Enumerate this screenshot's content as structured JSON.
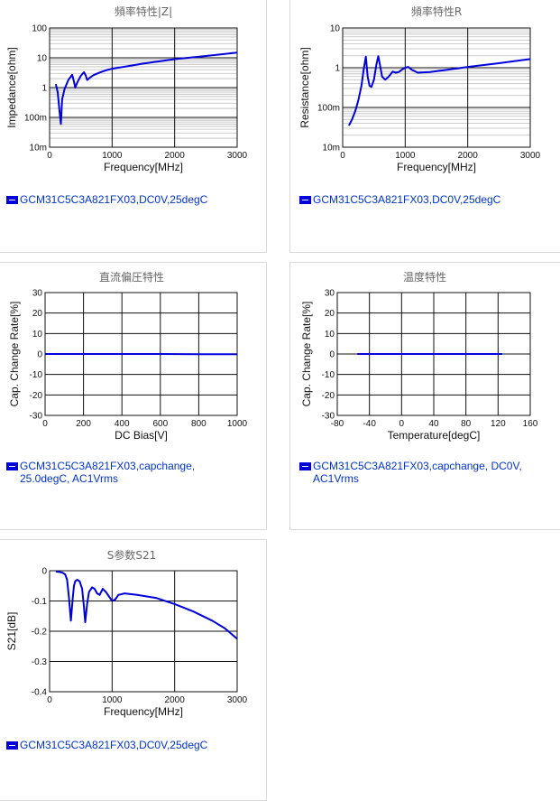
{
  "colors": {
    "series": "#0000dd",
    "legend_text": "#0033cc",
    "grid_major": "#111111",
    "grid_minor": "#bbbbbb",
    "panel_border": "#d9d9d9"
  },
  "legend_icon": "minus-square-icon",
  "chart_data": [
    {
      "id": "impedance",
      "type": "line",
      "title": "頻率特性|Z|",
      "xlabel": "Frequency[MHz]",
      "ylabel": "Impedance[ohm]",
      "xlim": [
        0,
        3000
      ],
      "x_scale": "linear",
      "x_ticks": [
        0,
        1000,
        2000,
        3000
      ],
      "x_tick_labels": [
        "0",
        "1000",
        "2000",
        "3000"
      ],
      "ylim": [
        0.01,
        100
      ],
      "y_scale": "log",
      "y_ticks": [
        0.01,
        0.1,
        1,
        10,
        100
      ],
      "y_tick_labels": [
        "10m",
        "100m",
        "1",
        "10",
        "100"
      ],
      "grid": true,
      "legend": "GCM31C5C3A821FX03,DC0V,25degC",
      "series": [
        {
          "x": [
            100,
            130,
            160,
            180,
            200,
            240,
            300,
            360,
            390,
            410,
            450,
            500,
            550,
            580,
            600,
            650,
            700,
            800,
            900,
            1000,
            1200,
            1500,
            2000,
            2500,
            3000
          ],
          "y": [
            1.3,
            0.7,
            0.15,
            0.06,
            0.4,
            0.9,
            1.8,
            2.7,
            1.6,
            1.0,
            1.6,
            2.5,
            3.3,
            2.5,
            1.8,
            2.2,
            2.6,
            3.2,
            3.8,
            4.3,
            5.0,
            6.4,
            9.0,
            11.5,
            15
          ]
        }
      ]
    },
    {
      "id": "resistance",
      "type": "line",
      "title": "頻率特性R",
      "xlabel": "Frequency[MHz]",
      "ylabel": "Resistance[ohm]",
      "xlim": [
        0,
        3000
      ],
      "x_scale": "linear",
      "x_ticks": [
        0,
        1000,
        2000,
        3000
      ],
      "x_tick_labels": [
        "0",
        "1000",
        "2000",
        "3000"
      ],
      "ylim": [
        0.01,
        10
      ],
      "y_scale": "log",
      "y_ticks": [
        0.01,
        0.1,
        1,
        10
      ],
      "y_tick_labels": [
        "10m",
        "100m",
        "1",
        "10"
      ],
      "grid": true,
      "legend": "GCM31C5C3A821FX03,DC0V,25degC",
      "series": [
        {
          "x": [
            100,
            150,
            200,
            250,
            300,
            340,
            370,
            400,
            430,
            460,
            500,
            540,
            570,
            600,
            630,
            680,
            730,
            800,
            850,
            900,
            950,
            1000,
            1050,
            1100,
            1200,
            1400,
            1700,
            2000,
            2500,
            3000
          ],
          "y": [
            0.035,
            0.05,
            0.08,
            0.15,
            0.35,
            1.0,
            1.9,
            0.6,
            0.35,
            0.33,
            0.5,
            1.2,
            1.95,
            1.1,
            0.6,
            0.5,
            0.58,
            0.8,
            0.75,
            0.78,
            0.9,
            1.0,
            1.05,
            0.9,
            0.75,
            0.78,
            0.9,
            1.05,
            1.3,
            1.65
          ]
        }
      ]
    },
    {
      "id": "dc_bias",
      "type": "line",
      "title": "直流偏圧特性",
      "xlabel": "DC Bias[V]",
      "ylabel": "Cap. Change Rate[%]",
      "xlim": [
        0,
        1000
      ],
      "x_scale": "linear",
      "x_ticks": [
        0,
        200,
        400,
        600,
        800,
        1000
      ],
      "x_tick_labels": [
        "0",
        "200",
        "400",
        "600",
        "800",
        "1000"
      ],
      "ylim": [
        -30,
        30
      ],
      "y_scale": "linear",
      "y_ticks": [
        -30,
        -20,
        -10,
        0,
        10,
        20,
        30
      ],
      "y_tick_labels": [
        "-30",
        "-20",
        "-10",
        "0",
        "10",
        "20",
        "30"
      ],
      "grid": true,
      "legend": "GCM31C5C3A821FX03,capchange, 25.0degC, AC1Vrms",
      "series": [
        {
          "x": [
            0,
            200,
            400,
            600,
            800,
            1000
          ],
          "y": [
            0,
            0,
            0,
            0,
            -0.1,
            -0.1
          ]
        }
      ]
    },
    {
      "id": "temperature",
      "type": "line",
      "title": "温度特性",
      "xlabel": "Temperature[degC]",
      "ylabel": "Cap. Change Rate[%]",
      "xlim": [
        -80,
        160
      ],
      "x_scale": "linear",
      "x_ticks": [
        -80,
        -40,
        0,
        40,
        80,
        120,
        160
      ],
      "x_tick_labels": [
        "-80",
        "-40",
        "0",
        "40",
        "80",
        "120",
        "160"
      ],
      "ylim": [
        -30,
        30
      ],
      "y_scale": "linear",
      "y_ticks": [
        -30,
        -20,
        -10,
        0,
        10,
        20,
        30
      ],
      "y_tick_labels": [
        "-30",
        "-20",
        "-10",
        "0",
        "10",
        "20",
        "30"
      ],
      "grid": true,
      "legend": "GCM31C5C3A821FX03,capchange, DC0V, AC1Vrms",
      "series": [
        {
          "x": [
            -55,
            -25,
            0,
            25,
            50,
            85,
            125
          ],
          "y": [
            0,
            0,
            0,
            0,
            0,
            0,
            0
          ]
        }
      ]
    },
    {
      "id": "s21",
      "type": "line",
      "title": "S参数S21",
      "xlabel": "Frequency[MHz]",
      "ylabel": "S21[dB]",
      "xlim": [
        0,
        3000
      ],
      "x_scale": "linear",
      "x_ticks": [
        0,
        1000,
        2000,
        3000
      ],
      "x_tick_labels": [
        "0",
        "1000",
        "2000",
        "3000"
      ],
      "ylim": [
        -0.4,
        0
      ],
      "y_scale": "linear",
      "y_ticks": [
        -0.4,
        -0.3,
        -0.2,
        -0.1,
        0
      ],
      "y_tick_labels": [
        "-0.4",
        "-0.3",
        "-0.2",
        "-0.1",
        "0"
      ],
      "grid": true,
      "legend": "GCM31C5C3A821FX03,DC0V,25degC",
      "series": [
        {
          "x": [
            100,
            150,
            200,
            250,
            280,
            310,
            340,
            370,
            390,
            410,
            440,
            480,
            520,
            550,
            570,
            600,
            630,
            680,
            720,
            760,
            800,
            850,
            900,
            950,
            1000,
            1050,
            1100,
            1200,
            1400,
            1700,
            2000,
            2300,
            2600,
            2800,
            3000
          ],
          "y": [
            -0.003,
            -0.004,
            -0.006,
            -0.012,
            -0.03,
            -0.09,
            -0.165,
            -0.09,
            -0.05,
            -0.035,
            -0.03,
            -0.035,
            -0.06,
            -0.12,
            -0.17,
            -0.11,
            -0.07,
            -0.055,
            -0.06,
            -0.075,
            -0.08,
            -0.06,
            -0.07,
            -0.085,
            -0.1,
            -0.095,
            -0.08,
            -0.075,
            -0.08,
            -0.09,
            -0.11,
            -0.135,
            -0.165,
            -0.19,
            -0.225
          ]
        }
      ]
    }
  ]
}
